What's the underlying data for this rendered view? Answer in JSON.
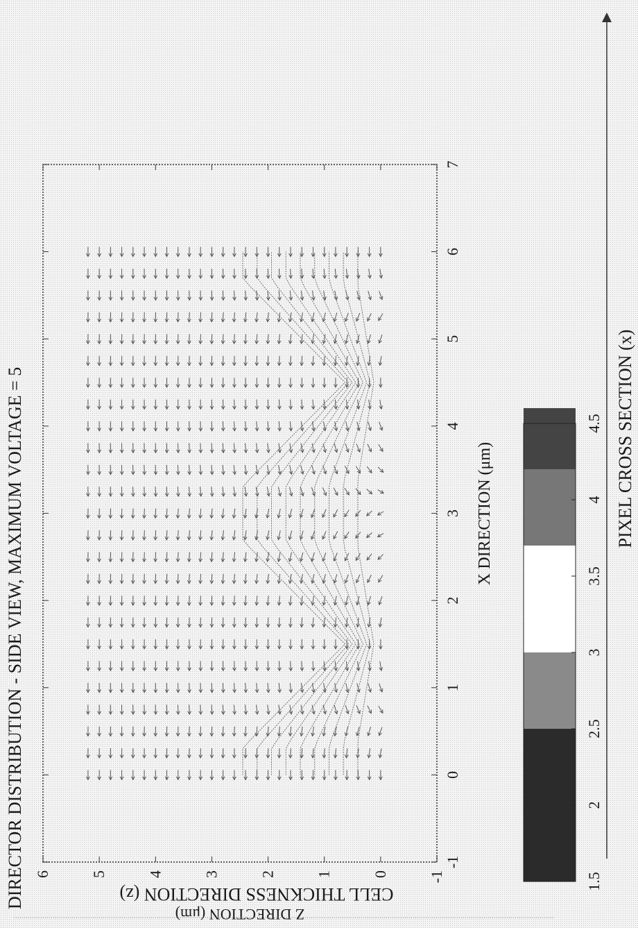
{
  "figure": {
    "outer_x_label": "PIXEL CROSS SECTION (x)",
    "outer_z_label": "CELL THICKNESS DIRECTION (z)"
  },
  "chart_data": [
    {
      "type": "quiver",
      "title": "DIRECTOR DISTRIBUTION - SIDE VIEW, MAXIMUM VOLTAGE = 5",
      "xlabel": "X DIRECTION (μm)",
      "ylabel": "Z DIRECTION (μm)",
      "xlim": [
        -1,
        7
      ],
      "ylim": [
        -1,
        6
      ],
      "x_ticks": [
        "-1",
        "0",
        "1",
        "2",
        "3",
        "4",
        "5",
        "6",
        "7"
      ],
      "y_ticks": [
        "-1",
        "0",
        "1",
        "2",
        "3",
        "4",
        "5",
        "6"
      ],
      "grid": false,
      "x_grid": [
        0,
        6,
        0.25
      ],
      "z_grid": [
        0,
        5.2,
        0.2
      ],
      "electrode_edges": [
        1.5,
        4.5
      ],
      "equipotential_levels": [
        0.5,
        1,
        1.5,
        2,
        2.5,
        3,
        3.5,
        4,
        4.5
      ]
    },
    {
      "type": "colorbar",
      "ticks": [
        "1.5",
        "2",
        "2.5",
        "3",
        "3.5",
        "4",
        "4.5"
      ],
      "range": [
        1.5,
        4.5
      ],
      "bands": [
        {
          "from": 1.5,
          "to": 2.5,
          "color": "#2b2b2b"
        },
        {
          "from": 2.5,
          "to": 3.0,
          "color": "#8a8a8a"
        },
        {
          "from": 3.0,
          "to": 3.7,
          "color": "#ffffff"
        },
        {
          "from": 3.7,
          "to": 4.2,
          "color": "#777777"
        },
        {
          "from": 4.2,
          "to": 4.6,
          "color": "#444444"
        }
      ]
    }
  ]
}
